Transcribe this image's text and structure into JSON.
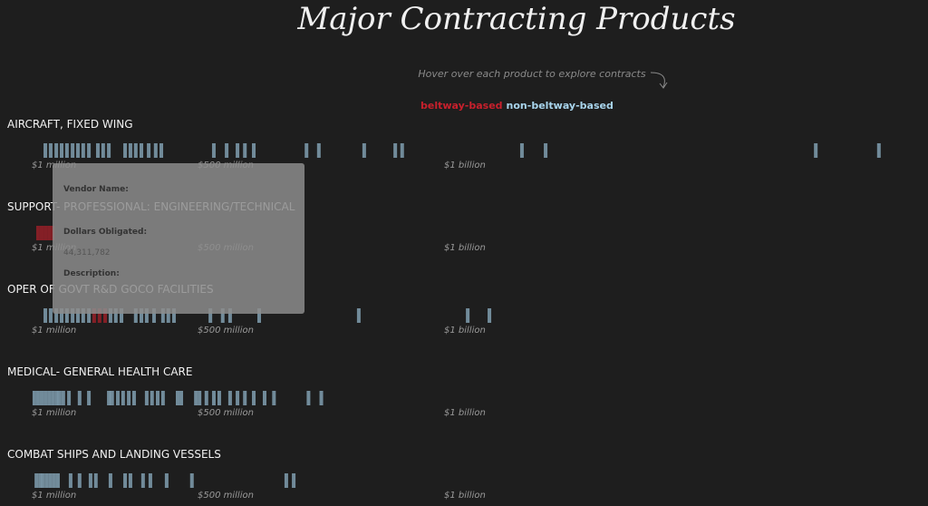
{
  "title": "Major Contracting Products",
  "hint": "Hover over each product to explore contracts",
  "legend": [
    {
      "name": "beltway-based",
      "color": "#c8202c"
    },
    {
      "name": "non-beltway-based",
      "color": "#a8d4ec"
    }
  ],
  "axis_ticks": [
    {
      "value": 1,
      "label": "$1 million"
    },
    {
      "value": 500,
      "label": "$500 million"
    },
    {
      "value": 1000,
      "label": "$1 billion"
    }
  ],
  "products": [
    {
      "name": "AIRCRAFT, FIXED WING",
      "values": [
        42,
        58,
        75,
        91,
        107,
        124,
        140,
        156,
        173,
        200,
        216,
        233,
        282,
        298,
        314,
        331,
        353,
        374,
        391,
        533,
        559,
        581,
        596,
        614,
        721,
        746,
        838,
        901,
        915,
        1158,
        1206,
        1754,
        1882
      ],
      "groups": [
        1,
        1,
        1,
        1,
        1,
        1,
        1,
        1,
        1,
        1,
        1,
        1,
        1,
        1,
        1,
        1,
        1,
        1,
        1,
        1,
        1,
        1,
        1,
        1,
        1,
        1,
        1,
        1,
        1,
        1,
        1,
        1,
        1
      ]
    },
    {
      "name": "SUPPORT- PROFESSIONAL: ENGINEERING/TECHNICAL",
      "values": [
        20,
        31,
        42,
        53,
        64
      ],
      "groups": [
        0,
        0,
        0,
        0,
        0
      ]
    },
    {
      "name": "OPER OF GOVT R&D GOCO FACILITIES",
      "values": [
        42,
        58,
        75,
        91,
        107,
        124,
        140,
        156,
        173,
        189,
        205,
        222,
        238,
        254,
        271,
        314,
        331,
        347,
        369,
        396,
        412,
        429,
        526,
        551,
        566,
        625,
        827,
        1048,
        1092
      ],
      "groups": [
        1,
        1,
        1,
        1,
        1,
        1,
        1,
        1,
        1,
        0,
        0,
        0,
        1,
        1,
        1,
        1,
        1,
        1,
        1,
        1,
        1,
        1,
        1,
        1,
        1,
        1,
        1,
        1,
        1
      ]
    },
    {
      "name": "MEDICAL- GENERAL HEALTH CARE",
      "values": [
        9,
        20,
        31,
        42,
        53,
        64,
        75,
        85,
        96,
        113,
        145,
        173,
        233,
        243,
        260,
        276,
        293,
        309,
        347,
        363,
        380,
        396,
        440,
        451,
        495,
        504,
        518,
        533,
        544,
        566,
        581,
        596,
        614,
        636,
        655,
        725,
        751
      ],
      "groups": [
        1,
        1,
        1,
        1,
        1,
        1,
        1,
        1,
        1,
        1,
        1,
        1,
        1,
        1,
        1,
        1,
        1,
        1,
        1,
        1,
        1,
        1,
        1,
        1,
        1,
        1,
        1,
        1,
        1,
        1,
        1,
        1,
        1,
        1,
        1,
        1,
        1
      ]
    },
    {
      "name": "COMBAT SHIPS AND LANDING VESSELS",
      "values": [
        15,
        26,
        36,
        47,
        58,
        69,
        80,
        118,
        145,
        178,
        194,
        238,
        282,
        298,
        336,
        358,
        407,
        483,
        680,
        695
      ],
      "groups": [
        1,
        1,
        1,
        1,
        1,
        1,
        1,
        1,
        1,
        1,
        1,
        1,
        1,
        1,
        1,
        1,
        1,
        1,
        1,
        1
      ]
    }
  ],
  "tooltip": {
    "vendor_label": "Vendor Name:",
    "dollars_label": "Dollars Obligated:",
    "dollars_value": "44,311,782",
    "description_label": "Description:"
  }
}
